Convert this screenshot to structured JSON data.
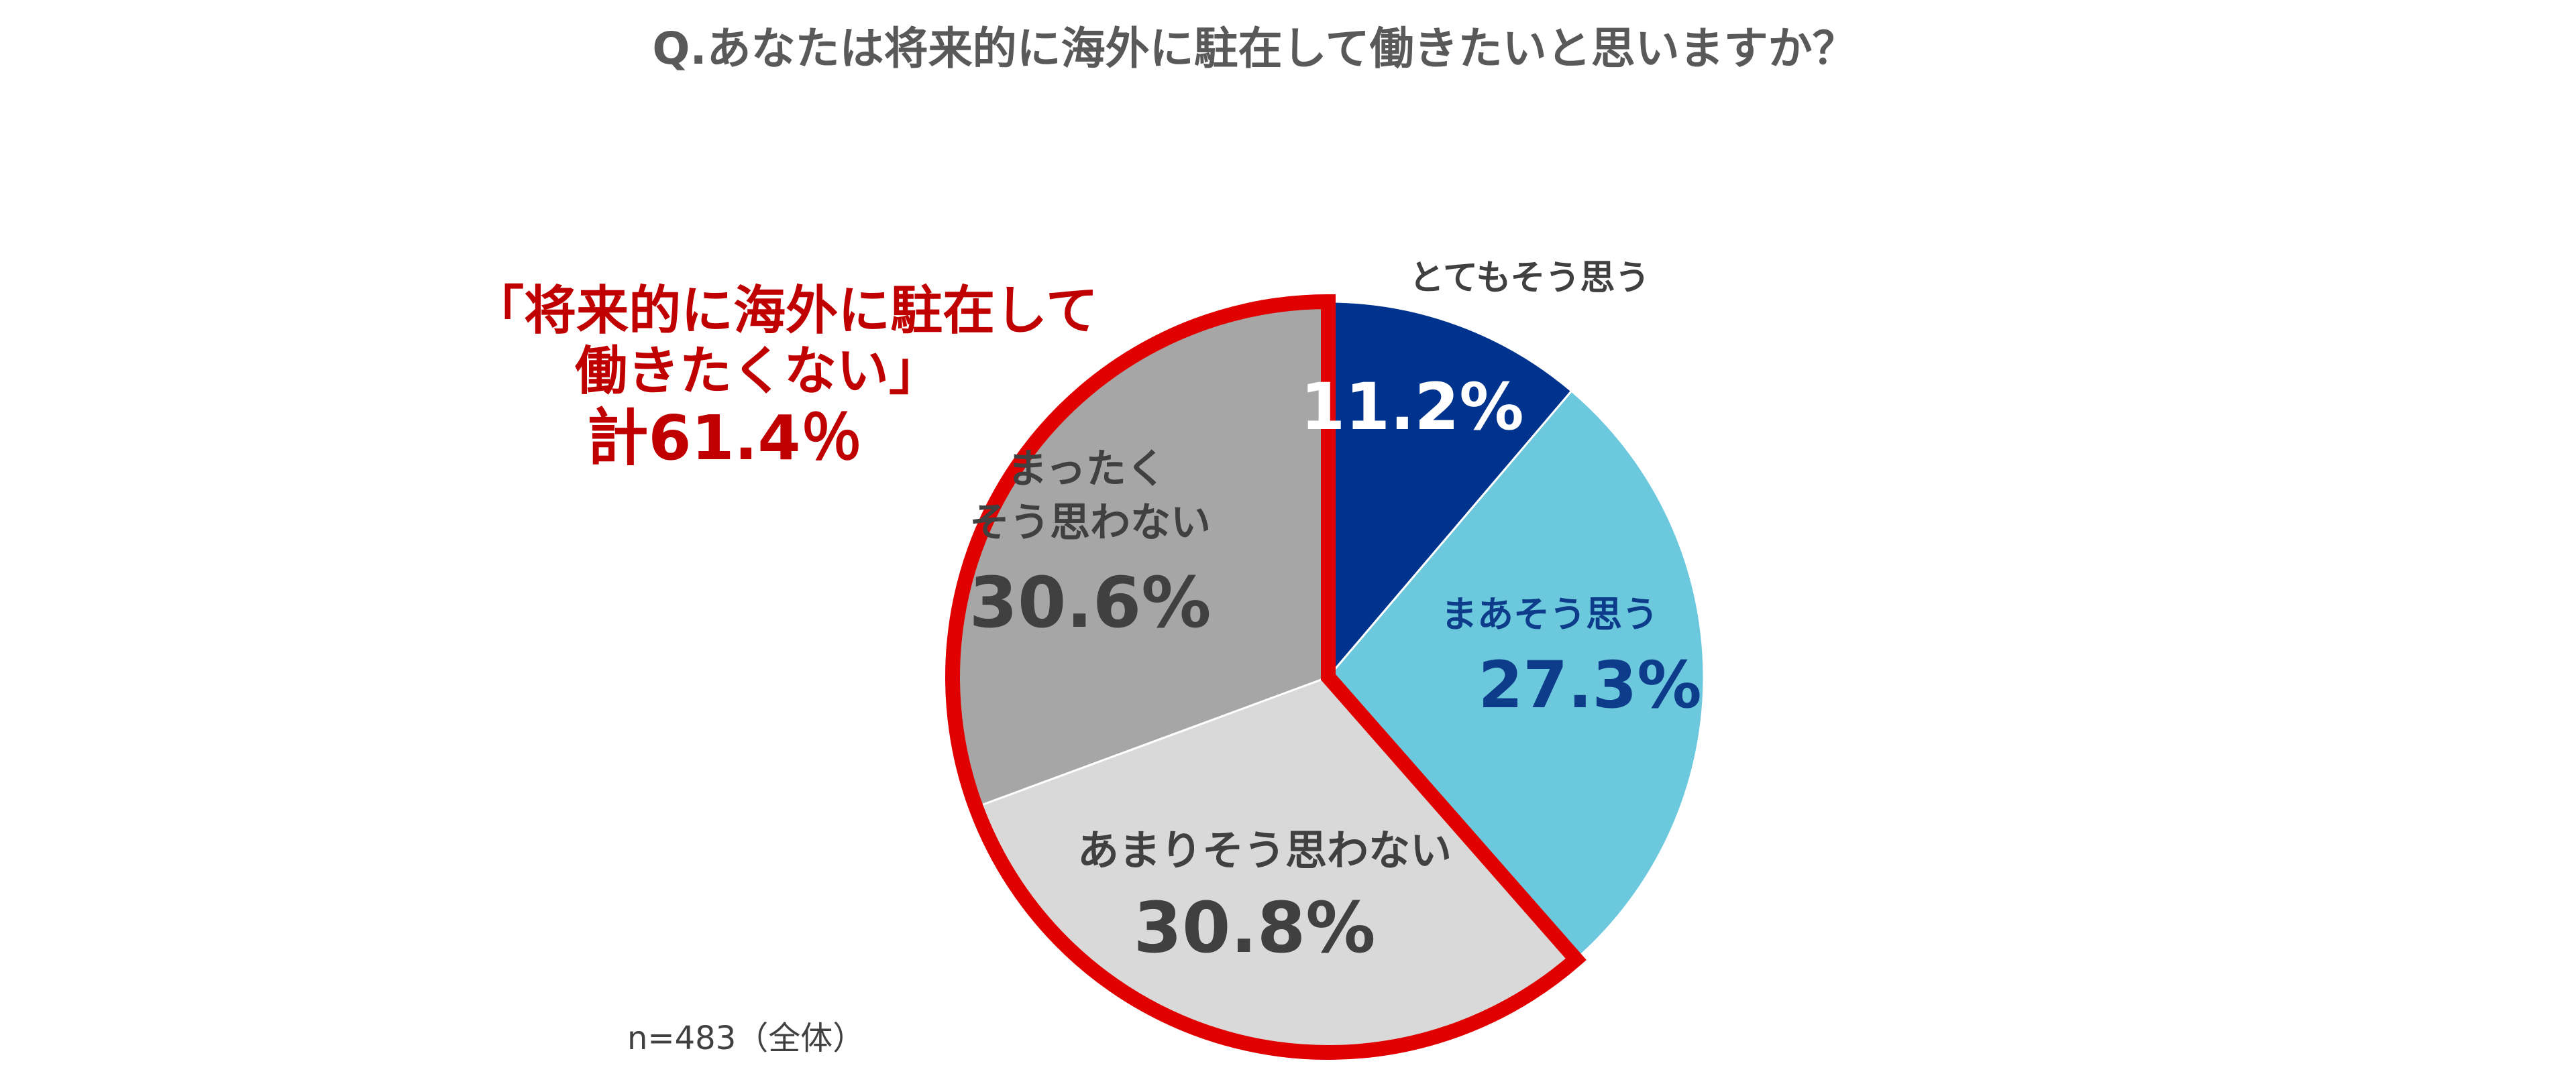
{
  "chart_data": {
    "type": "pie",
    "title": "Q.あなたは将来的に海外に駐在して働きたいと思いますか？",
    "slices": [
      {
        "line1": "とてもそう思う",
        "line2": "",
        "value": 11.2,
        "value_label": "11.2%",
        "color": "#00338D",
        "text_color": "#FFFFFF",
        "cat_color": "#404040"
      },
      {
        "line1": "まあそう思う",
        "line2": "",
        "value": 27.3,
        "value_label": "27.3%",
        "color": "#6CC8DC",
        "text_color": "#0D3C8A",
        "cat_color": "#0D3C8A"
      },
      {
        "line1": "あまりそう思わない",
        "line2": "",
        "value": 30.8,
        "value_label": "30.8%",
        "color": "#D9D9D9",
        "text_color": "#404040",
        "cat_color": "#404040"
      },
      {
        "line1": "まったく",
        "line2": "そう思わない",
        "value": 30.6,
        "value_label": "30.6%",
        "color": "#A6A6A6",
        "text_color": "#404040",
        "cat_color": "#404040"
      }
    ],
    "highlight": {
      "line1": "「将来的に海外に駐在して",
      "line2": "働きたくない」",
      "total": "計61.4％",
      "color": "#E00000",
      "text_color": "#C00000"
    },
    "note": "n=483（全体）"
  }
}
